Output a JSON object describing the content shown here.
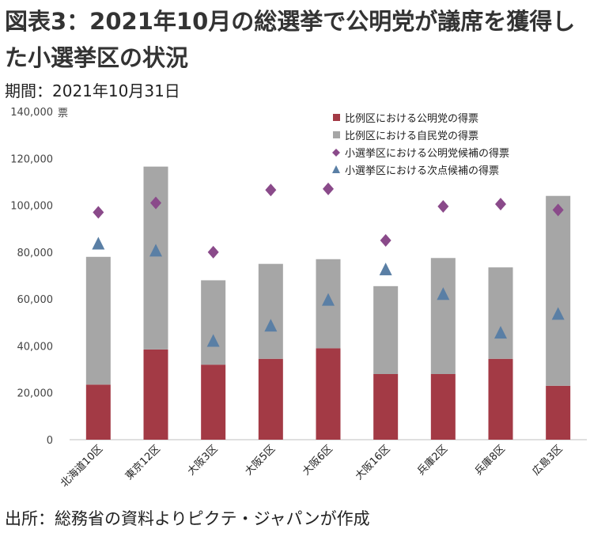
{
  "title": "図表3：2021年10月の総選挙で公明党が議席を獲得した小選挙区の状況",
  "period": "期間：2021年10月31日",
  "source": "出所：総務省の資料よりピクテ・ジャパンが作成",
  "chart_data": {
    "type": "bar",
    "stacked": true,
    "y_unit": "票",
    "ylim": [
      0,
      140000
    ],
    "y_ticks": [
      "0",
      "20,000",
      "40,000",
      "60,000",
      "80,000",
      "100,000",
      "120,000",
      "140,000"
    ],
    "grid": false,
    "legend_position": "top-right",
    "categories": [
      "北海道10区",
      "東京12区",
      "大阪3区",
      "大阪5区",
      "大阪6区",
      "大阪16区",
      "兵庫2区",
      "兵庫8区",
      "広島3区"
    ],
    "series": [
      {
        "name": "比例区における公明党の得票",
        "kind": "bar",
        "color": "#a33a45",
        "values": [
          23500,
          38500,
          32000,
          34500,
          39000,
          28000,
          28000,
          34500,
          23000
        ]
      },
      {
        "name": "比例区における自民党の得票",
        "kind": "bar",
        "color": "#a6a6a6",
        "values": [
          54500,
          78000,
          36000,
          40500,
          38000,
          37500,
          49500,
          39000,
          81000
        ]
      },
      {
        "name": "小選挙区における公明党候補の得票",
        "kind": "marker",
        "marker": "diamond",
        "color": "#8a4a8a",
        "values": [
          97000,
          101000,
          80000,
          106500,
          107000,
          85000,
          99500,
          100500,
          98000
        ]
      },
      {
        "name": "小選挙区における次点候補の得票",
        "kind": "marker",
        "marker": "triangle",
        "color": "#5a7fa5",
        "values": [
          83500,
          80500,
          42000,
          48500,
          59500,
          72500,
          62000,
          45500,
          53500
        ]
      }
    ]
  }
}
